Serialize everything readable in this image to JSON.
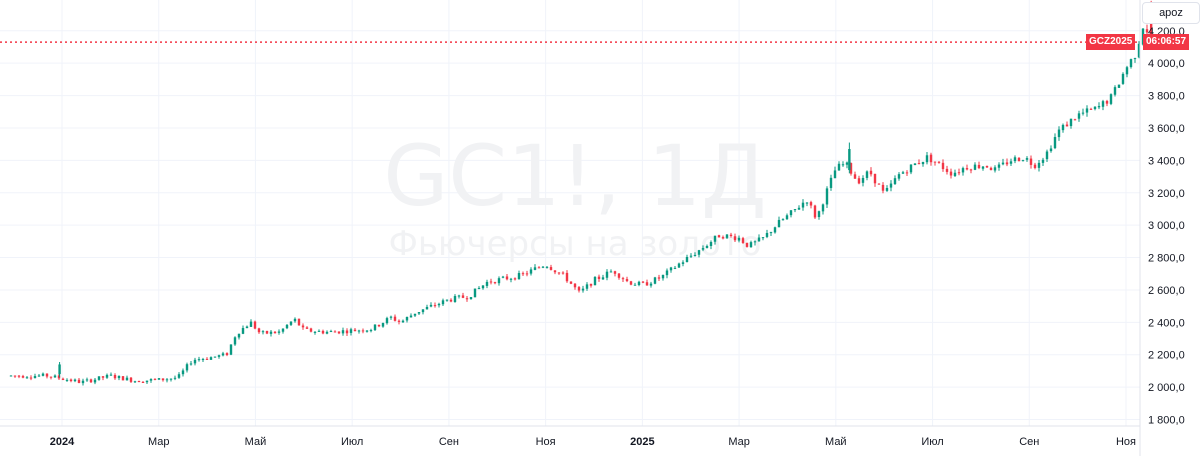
{
  "chart_data": {
    "type": "candlestick",
    "title": "GC1!, 1Д",
    "subtitle": "Фьючерсы на золото",
    "y_unit_button": "apoz",
    "ylim": [
      1760,
      4390
    ],
    "y_ticks": [
      "1 800,0",
      "2 000,0",
      "2 200,0",
      "2 400,0",
      "2 600,0",
      "2 800,0",
      "3 000,0",
      "3 200,0",
      "3 400,0",
      "3 600,0",
      "3 800,0",
      "4 000,0",
      "4 200,0"
    ],
    "y_tick_values": [
      1800,
      2000,
      2200,
      2400,
      2600,
      2800,
      3000,
      3200,
      3400,
      3600,
      3800,
      4000,
      4200
    ],
    "x_ticks": [
      {
        "label": "2024",
        "bold": true,
        "month": 0
      },
      {
        "label": "Мар",
        "bold": false,
        "month": 2
      },
      {
        "label": "Май",
        "bold": false,
        "month": 4
      },
      {
        "label": "Июл",
        "bold": false,
        "month": 6
      },
      {
        "label": "Сен",
        "bold": false,
        "month": 8
      },
      {
        "label": "Ноя",
        "bold": false,
        "month": 10
      },
      {
        "label": "2025",
        "bold": true,
        "month": 12
      },
      {
        "label": "Мар",
        "bold": false,
        "month": 14
      },
      {
        "label": "Май",
        "bold": false,
        "month": 16
      },
      {
        "label": "Июл",
        "bold": false,
        "month": 18
      },
      {
        "label": "Сен",
        "bold": false,
        "month": 20
      },
      {
        "label": "Ноя",
        "bold": false,
        "month": 22
      }
    ],
    "price_line": {
      "symbol": "GCZ2025",
      "countdown": "06:06:57",
      "value": 4130
    },
    "colors": {
      "up": "#089981",
      "down": "#f23645",
      "grid": "#f0f3fa",
      "price_line": "#f23645"
    },
    "monthly_closes": [
      {
        "month": "Dec 2023",
        "close": 2075
      },
      {
        "month": "Jan 2024",
        "close": 2050
      },
      {
        "month": "Feb 2024",
        "close": 2050
      },
      {
        "month": "Mar 2024",
        "close": 2250
      },
      {
        "month": "Apr 2024",
        "close": 2310
      },
      {
        "month": "May 2024",
        "close": 2350
      },
      {
        "month": "Jun 2024",
        "close": 2340
      },
      {
        "month": "Jul 2024",
        "close": 2430
      },
      {
        "month": "Aug 2024",
        "close": 2550
      },
      {
        "month": "Sep 2024",
        "close": 2690
      },
      {
        "month": "Oct 2024",
        "close": 2750
      },
      {
        "month": "Nov 2024",
        "close": 2680
      },
      {
        "month": "Dec 2024",
        "close": 2640
      },
      {
        "month": "Jan 2025",
        "close": 2830
      },
      {
        "month": "Feb 2025",
        "close": 2870
      },
      {
        "month": "Mar 2025",
        "close": 3150
      },
      {
        "month": "Apr 2025",
        "close": 3320
      },
      {
        "month": "May 2025",
        "close": 3310
      },
      {
        "month": "Jun 2025",
        "close": 3330
      },
      {
        "month": "Jul 2025",
        "close": 3350
      },
      {
        "month": "Aug 2025",
        "close": 3440
      },
      {
        "month": "Sep 2025",
        "close": 3850
      },
      {
        "month": "Oct 2025",
        "close": 4130
      }
    ],
    "anchors": [
      [
        -0.3,
        2070
      ],
      [
        0.4,
        2030
      ],
      [
        1.0,
        2070
      ],
      [
        1.5,
        2040
      ],
      [
        2.0,
        2045
      ],
      [
        2.4,
        2060
      ],
      [
        2.7,
        2170
      ],
      [
        3.0,
        2180
      ],
      [
        3.4,
        2200
      ],
      [
        3.6,
        2330
      ],
      [
        3.9,
        2400
      ],
      [
        4.1,
        2330
      ],
      [
        4.5,
        2340
      ],
      [
        4.8,
        2420
      ],
      [
        5.0,
        2350
      ],
      [
        5.5,
        2340
      ],
      [
        6.0,
        2350
      ],
      [
        6.4,
        2360
      ],
      [
        6.8,
        2430
      ],
      [
        7.0,
        2400
      ],
      [
        7.3,
        2460
      ],
      [
        8.0,
        2540
      ],
      [
        8.4,
        2560
      ],
      [
        8.8,
        2650
      ],
      [
        9.5,
        2690
      ],
      [
        10.0,
        2760
      ],
      [
        10.4,
        2680
      ],
      [
        10.7,
        2580
      ],
      [
        11.0,
        2660
      ],
      [
        11.4,
        2720
      ],
      [
        11.7,
        2650
      ],
      [
        12.0,
        2630
      ],
      [
        12.4,
        2680
      ],
      [
        12.8,
        2770
      ],
      [
        13.2,
        2850
      ],
      [
        13.6,
        2940
      ],
      [
        14.0,
        2920
      ],
      [
        14.2,
        2870
      ],
      [
        14.5,
        2920
      ],
      [
        14.8,
        3010
      ],
      [
        15.1,
        3080
      ],
      [
        15.4,
        3160
      ],
      [
        15.6,
        3040
      ],
      [
        15.8,
        3200
      ],
      [
        16.0,
        3350
      ],
      [
        16.2,
        3380
      ],
      [
        16.45,
        3270
      ],
      [
        16.7,
        3330
      ],
      [
        17.0,
        3190
      ],
      [
        17.3,
        3310
      ],
      [
        17.6,
        3370
      ],
      [
        17.9,
        3420
      ],
      [
        18.1,
        3380
      ],
      [
        18.4,
        3320
      ],
      [
        18.7,
        3360
      ],
      [
        19.1,
        3370
      ],
      [
        19.3,
        3340
      ],
      [
        19.6,
        3400
      ],
      [
        19.9,
        3420
      ],
      [
        20.1,
        3370
      ],
      [
        20.35,
        3440
      ],
      [
        20.6,
        3580
      ],
      [
        21.0,
        3680
      ],
      [
        21.4,
        3720
      ],
      [
        21.7,
        3790
      ],
      [
        22.0,
        3970
      ],
      [
        22.2,
        4060
      ],
      [
        22.35,
        4230
      ],
      [
        22.5,
        4180
      ]
    ],
    "specials": [
      {
        "t": -0.05,
        "o": 2080,
        "c": 2140,
        "h": 2155,
        "l": 2060
      },
      {
        "t": 16.28,
        "o": 3340,
        "c": 3470,
        "h": 3510,
        "l": 3320
      },
      {
        "t": 22.52,
        "o": 4370,
        "c": 4130,
        "h": 4385,
        "l": 4100
      }
    ]
  }
}
